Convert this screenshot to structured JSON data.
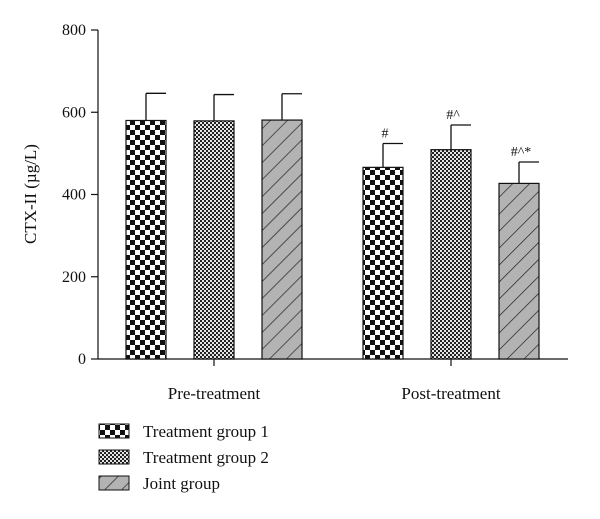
{
  "chart_data": {
    "type": "bar",
    "ylabel": "CTX-II (µg/L)",
    "ylim": [
      0,
      800
    ],
    "yticks": [
      0,
      200,
      400,
      600,
      800
    ],
    "categories": [
      "Pre-treatment",
      "Post-treatment"
    ],
    "series": [
      {
        "name": "Treatment group 1",
        "pattern": "checker-large",
        "values": [
          580,
          466
        ],
        "errors": [
          66,
          58
        ],
        "annotations": [
          "",
          "#"
        ]
      },
      {
        "name": "Treatment group 2",
        "pattern": "checker-small",
        "values": [
          579,
          509
        ],
        "errors": [
          64,
          60
        ],
        "annotations": [
          "",
          "#^"
        ]
      },
      {
        "name": "Joint group",
        "pattern": "diagonal",
        "values": [
          581,
          427
        ],
        "errors": [
          64,
          52
        ],
        "annotations": [
          "",
          "#^*"
        ]
      }
    ],
    "legend_position": "bottom-left",
    "grid": false
  }
}
